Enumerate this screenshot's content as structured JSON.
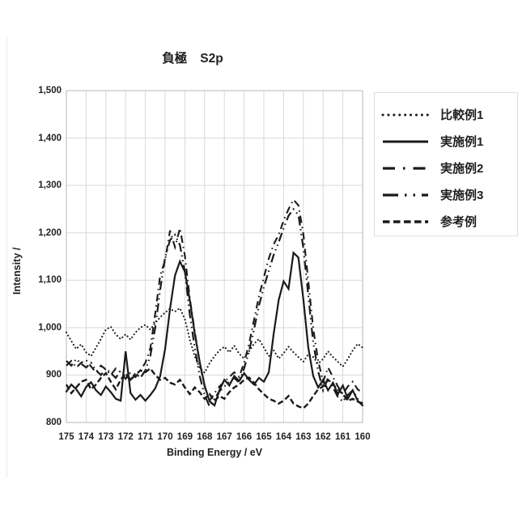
{
  "figure": {
    "title_left": "負極",
    "title_right": "S2p"
  },
  "chart_data": {
    "type": "line",
    "title": "負極 S2p",
    "xlabel": "Binding Energy / eV",
    "ylabel": "Intensity /",
    "x_axis": {
      "min": 160,
      "max": 175,
      "step": 1,
      "reversed": true,
      "tick_labels": [
        "175",
        "174",
        "173",
        "172",
        "171",
        "170",
        "169",
        "168",
        "167",
        "166",
        "165",
        "164",
        "163",
        "162",
        "161",
        "160"
      ]
    },
    "y_axis": {
      "min": 800,
      "max": 1500,
      "step": 100,
      "tick_labels_top_down": [
        "1,500",
        "1,400",
        "1,300",
        "1,200",
        "1,100",
        "1,000",
        "900",
        "800"
      ]
    },
    "grid": true,
    "legend_position": "right",
    "line_color": "#1a1a1a",
    "grid_color": "#d9d9d9",
    "plot_border_color": "#c3c3c3",
    "x_start": 175,
    "x_step": -0.25,
    "series": [
      {
        "name": "比較例1",
        "style": "dotted",
        "values": [
          990,
          972,
          955,
          965,
          948,
          940,
          958,
          976,
          996,
          1002,
          986,
          976,
          986,
          975,
          990,
          1000,
          1006,
          996,
          1010,
          1022,
          1032,
          1040,
          1034,
          1041,
          1018,
          975,
          940,
          915,
          905,
          925,
          940,
          952,
          960,
          948,
          962,
          945,
          935,
          950,
          966,
          976,
          958,
          940,
          952,
          935,
          946,
          960,
          948,
          938,
          928,
          944,
          938,
          924,
          934,
          950,
          938,
          928,
          918,
          934,
          952,
          966,
          958
        ]
      },
      {
        "name": "実施例1",
        "style": "solid",
        "values": [
          865,
          880,
          870,
          855,
          875,
          885,
          868,
          858,
          876,
          864,
          850,
          846,
          950,
          862,
          848,
          858,
          846,
          858,
          872,
          898,
          955,
          1040,
          1110,
          1140,
          1118,
          1058,
          988,
          928,
          878,
          845,
          836,
          868,
          890,
          878,
          898,
          888,
          904,
          890,
          880,
          894,
          886,
          906,
          988,
          1058,
          1098,
          1082,
          1158,
          1148,
          1060,
          958,
          898,
          874,
          890,
          868,
          884,
          860,
          878,
          850,
          868,
          846,
          836
        ]
      },
      {
        "name": "実施例2",
        "style": "dash-dot",
        "values": [
          920,
          930,
          916,
          926,
          932,
          918,
          906,
          920,
          912,
          900,
          914,
          906,
          892,
          906,
          896,
          910,
          926,
          956,
          1030,
          1110,
          1142,
          1205,
          1170,
          1210,
          1152,
          1062,
          992,
          926,
          876,
          846,
          862,
          876,
          886,
          896,
          906,
          896,
          926,
          966,
          1016,
          1066,
          1106,
          1146,
          1176,
          1196,
          1226,
          1250,
          1270,
          1258,
          1198,
          1098,
          998,
          930,
          886,
          916,
          896,
          876,
          860,
          876,
          886,
          870,
          862
        ]
      },
      {
        "name": "実施例3",
        "style": "dash-dot-dot",
        "values": [
          930,
          920,
          934,
          924,
          916,
          926,
          910,
          900,
          914,
          904,
          894,
          910,
          900,
          890,
          904,
          894,
          910,
          940,
          1000,
          1080,
          1148,
          1185,
          1196,
          1174,
          1118,
          1028,
          958,
          898,
          858,
          834,
          850,
          866,
          876,
          886,
          894,
          884,
          914,
          950,
          996,
          1046,
          1086,
          1120,
          1154,
          1180,
          1210,
          1236,
          1250,
          1238,
          1168,
          1068,
          968,
          908,
          868,
          894,
          874,
          854,
          844,
          858,
          868,
          850,
          840
        ]
      },
      {
        "name": "参考例",
        "style": "dashed",
        "values": [
          880,
          862,
          874,
          886,
          890,
          870,
          880,
          894,
          904,
          886,
          870,
          890,
          904,
          890,
          900,
          910,
          906,
          914,
          900,
          890,
          894,
          884,
          880,
          890,
          874,
          860,
          874,
          864,
          850,
          860,
          846,
          856,
          850,
          864,
          874,
          880,
          890,
          895,
          884,
          870,
          860,
          850,
          846,
          840,
          846,
          856,
          840,
          834,
          830,
          840,
          856,
          870,
          876,
          890,
          880,
          870,
          860,
          846,
          850,
          844,
          840
        ]
      }
    ]
  }
}
